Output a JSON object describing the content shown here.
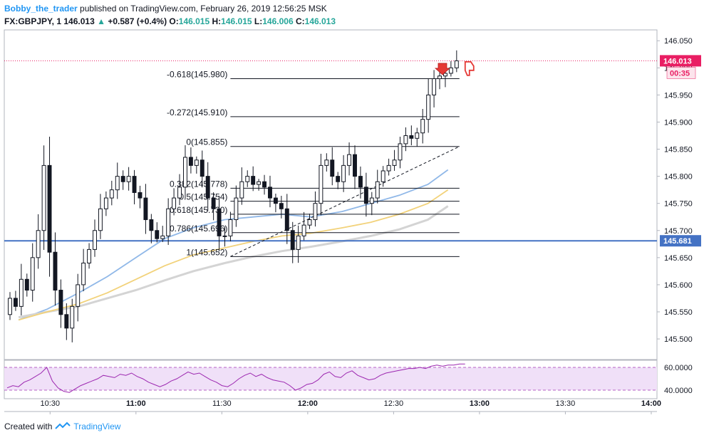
{
  "header": {
    "author": "Bobby_the_trader",
    "published_text": "published on TradingView.com, February 26, 2019 12:56:25 MSK",
    "symbol": "FX:GBPJPY, 1",
    "last": "146.013",
    "change": "+0.587 (+0.4%)",
    "o_label": "O:",
    "o_value": "146.015",
    "h_label": "H:",
    "h_value": "146.015",
    "l_label": "L:",
    "l_value": "146.006",
    "c_label": "C:",
    "c_value": "146.013"
  },
  "footer": {
    "created_with": "Created with",
    "brand": "TradingView"
  },
  "colors": {
    "bull": "#ffffff",
    "bear": "#131722",
    "wick": "#131722",
    "ema_fast": "#90b8e8",
    "ema_mid": "#f2d27a",
    "ema_slow": "#d4d4d4",
    "hline": "#4472c4",
    "price_label": "#e91e63",
    "rsi_line": "#9c27b0",
    "rsi_band": "#f0e0f8",
    "icons": "#e53935"
  },
  "chart_data": {
    "type": "candlestick",
    "timeframe": "1m",
    "time_axis": {
      "start": "10:14",
      "end": "14:02",
      "ticks": [
        {
          "time": "10:30",
          "label": "10:30",
          "bold": false
        },
        {
          "time": "11:00",
          "label": "11:00",
          "bold": true
        },
        {
          "time": "11:30",
          "label": "11:30",
          "bold": false
        },
        {
          "time": "12:00",
          "label": "12:00",
          "bold": true
        },
        {
          "time": "12:30",
          "label": "12:30",
          "bold": false
        },
        {
          "time": "13:00",
          "label": "13:00",
          "bold": true
        },
        {
          "time": "13:30",
          "label": "13:30",
          "bold": false
        },
        {
          "time": "14:00",
          "label": "14:00",
          "bold": true
        }
      ]
    },
    "price_axis": {
      "ylim": [
        145.462,
        146.07
      ],
      "ticks": [
        "146.050",
        "146.000",
        "145.950",
        "145.900",
        "145.850",
        "145.800",
        "145.750",
        "145.700",
        "145.650",
        "145.600",
        "145.550",
        "145.500"
      ],
      "last_price_label": "146.013",
      "countdown_label": "00:35",
      "hline_label": "145.681"
    },
    "candles_path": [
      145.545,
      145.575,
      145.56,
      145.61,
      145.59,
      145.65,
      145.7,
      145.82,
      145.66,
      145.59,
      145.545,
      145.52,
      145.56,
      145.6,
      145.64,
      145.665,
      145.7,
      145.74,
      145.76,
      145.775,
      145.8,
      145.79,
      145.8,
      145.77,
      145.76,
      145.72,
      145.7,
      145.685,
      145.69,
      145.74,
      145.76,
      145.78,
      145.835,
      145.82,
      145.83,
      145.8,
      145.76,
      145.74,
      145.69,
      145.69,
      145.72,
      145.76,
      145.79,
      145.8,
      145.785,
      145.79,
      145.78,
      145.76,
      145.75,
      145.74,
      145.7,
      145.665,
      145.69,
      145.71,
      145.72,
      145.75,
      145.82,
      145.83,
      145.8,
      145.79,
      145.82,
      145.84,
      145.8,
      145.78,
      145.75,
      145.76,
      145.79,
      145.81,
      145.82,
      145.83,
      145.86,
      145.875,
      145.87,
      145.88,
      145.905,
      145.95,
      145.98,
      145.985,
      145.99,
      146.0,
      146.013
    ],
    "ema_fast": [
      {
        "time": "10:19",
        "price": 145.535
      },
      {
        "time": "10:29",
        "price": 145.555
      },
      {
        "time": "10:40",
        "price": 145.585
      },
      {
        "time": "10:50",
        "price": 145.615
      },
      {
        "time": "11:00",
        "price": 145.65
      },
      {
        "time": "11:10",
        "price": 145.685
      },
      {
        "time": "11:20",
        "price": 145.705
      },
      {
        "time": "11:31",
        "price": 145.72
      },
      {
        "time": "11:41",
        "price": 145.725
      },
      {
        "time": "11:51",
        "price": 145.73
      },
      {
        "time": "12:01",
        "price": 145.725
      },
      {
        "time": "12:12",
        "price": 145.735
      },
      {
        "time": "12:22",
        "price": 145.75
      },
      {
        "time": "12:32",
        "price": 145.765
      },
      {
        "time": "12:42",
        "price": 145.785
      },
      {
        "time": "12:49",
        "price": 145.812
      }
    ],
    "ema_mid": [
      {
        "time": "10:19",
        "price": 145.535
      },
      {
        "time": "10:29",
        "price": 145.55
      },
      {
        "time": "10:40",
        "price": 145.565
      },
      {
        "time": "10:50",
        "price": 145.585
      },
      {
        "time": "11:00",
        "price": 145.61
      },
      {
        "time": "11:10",
        "price": 145.635
      },
      {
        "time": "11:20",
        "price": 145.655
      },
      {
        "time": "11:31",
        "price": 145.668
      },
      {
        "time": "11:41",
        "price": 145.68
      },
      {
        "time": "11:51",
        "price": 145.69
      },
      {
        "time": "12:01",
        "price": 145.695
      },
      {
        "time": "12:12",
        "price": 145.705
      },
      {
        "time": "12:22",
        "price": 145.715
      },
      {
        "time": "12:32",
        "price": 145.73
      },
      {
        "time": "12:42",
        "price": 145.75
      },
      {
        "time": "12:49",
        "price": 145.775
      }
    ],
    "ema_slow": [
      {
        "time": "10:19",
        "price": 145.54
      },
      {
        "time": "10:29",
        "price": 145.55
      },
      {
        "time": "10:40",
        "price": 145.56
      },
      {
        "time": "10:50",
        "price": 145.575
      },
      {
        "time": "11:00",
        "price": 145.59
      },
      {
        "time": "11:10",
        "price": 145.608
      },
      {
        "time": "11:20",
        "price": 145.625
      },
      {
        "time": "11:31",
        "price": 145.64
      },
      {
        "time": "11:41",
        "price": 145.652
      },
      {
        "time": "11:51",
        "price": 145.662
      },
      {
        "time": "12:01",
        "price": 145.67
      },
      {
        "time": "12:12",
        "price": 145.68
      },
      {
        "time": "12:22",
        "price": 145.69
      },
      {
        "time": "12:32",
        "price": 145.702
      },
      {
        "time": "12:42",
        "price": 145.72
      },
      {
        "time": "12:49",
        "price": 145.745
      }
    ],
    "horizontal_line": {
      "price": 145.681,
      "label": "145.681"
    },
    "fibonacci": {
      "start_time": "11:33",
      "end_time": "12:53",
      "levels": [
        {
          "ratio": "-0.618",
          "price": 145.98,
          "label": "-0.618(145.980)"
        },
        {
          "ratio": "-0.272",
          "price": 145.91,
          "label": "-0.272(145.910)"
        },
        {
          "ratio": "0",
          "price": 145.855,
          "label": "0(145.855)"
        },
        {
          "ratio": "0.382",
          "price": 145.778,
          "label": "0.382(145.778)"
        },
        {
          "ratio": "0.5",
          "price": 145.754,
          "label": "0.5(145.754)"
        },
        {
          "ratio": "0.618",
          "price": 145.73,
          "label": "0.618(145.730)"
        },
        {
          "ratio": "0.786",
          "price": 145.696,
          "label": "0.786(145.696)"
        },
        {
          "ratio": "1",
          "price": 145.652,
          "label": "1(145.652)"
        }
      ]
    },
    "trendline": {
      "start": {
        "time": "11:33",
        "price": 145.652
      },
      "end": {
        "time": "12:53",
        "price": 145.855
      },
      "style": "dashed"
    },
    "rsi": {
      "ylim": [
        35,
        65
      ],
      "ticks": [
        "60.0000",
        "40.0000"
      ],
      "band": [
        40,
        60
      ],
      "values": [
        42,
        44,
        43,
        47,
        49,
        52,
        55,
        60,
        48,
        42,
        39,
        38,
        41,
        44,
        46,
        48,
        50,
        53,
        52,
        51,
        54,
        53,
        55,
        52,
        50,
        47,
        45,
        43,
        45,
        48,
        50,
        53,
        56,
        54,
        55,
        52,
        49,
        47,
        44,
        43,
        46,
        50,
        53,
        55,
        52,
        54,
        51,
        49,
        48,
        47,
        44,
        40,
        42,
        45,
        46,
        49,
        54,
        56,
        52,
        51,
        55,
        57,
        53,
        51,
        49,
        50,
        53,
        55,
        56,
        57,
        58,
        59,
        59,
        60,
        59,
        61,
        62,
        61,
        62,
        62,
        63,
        63
      ]
    }
  }
}
